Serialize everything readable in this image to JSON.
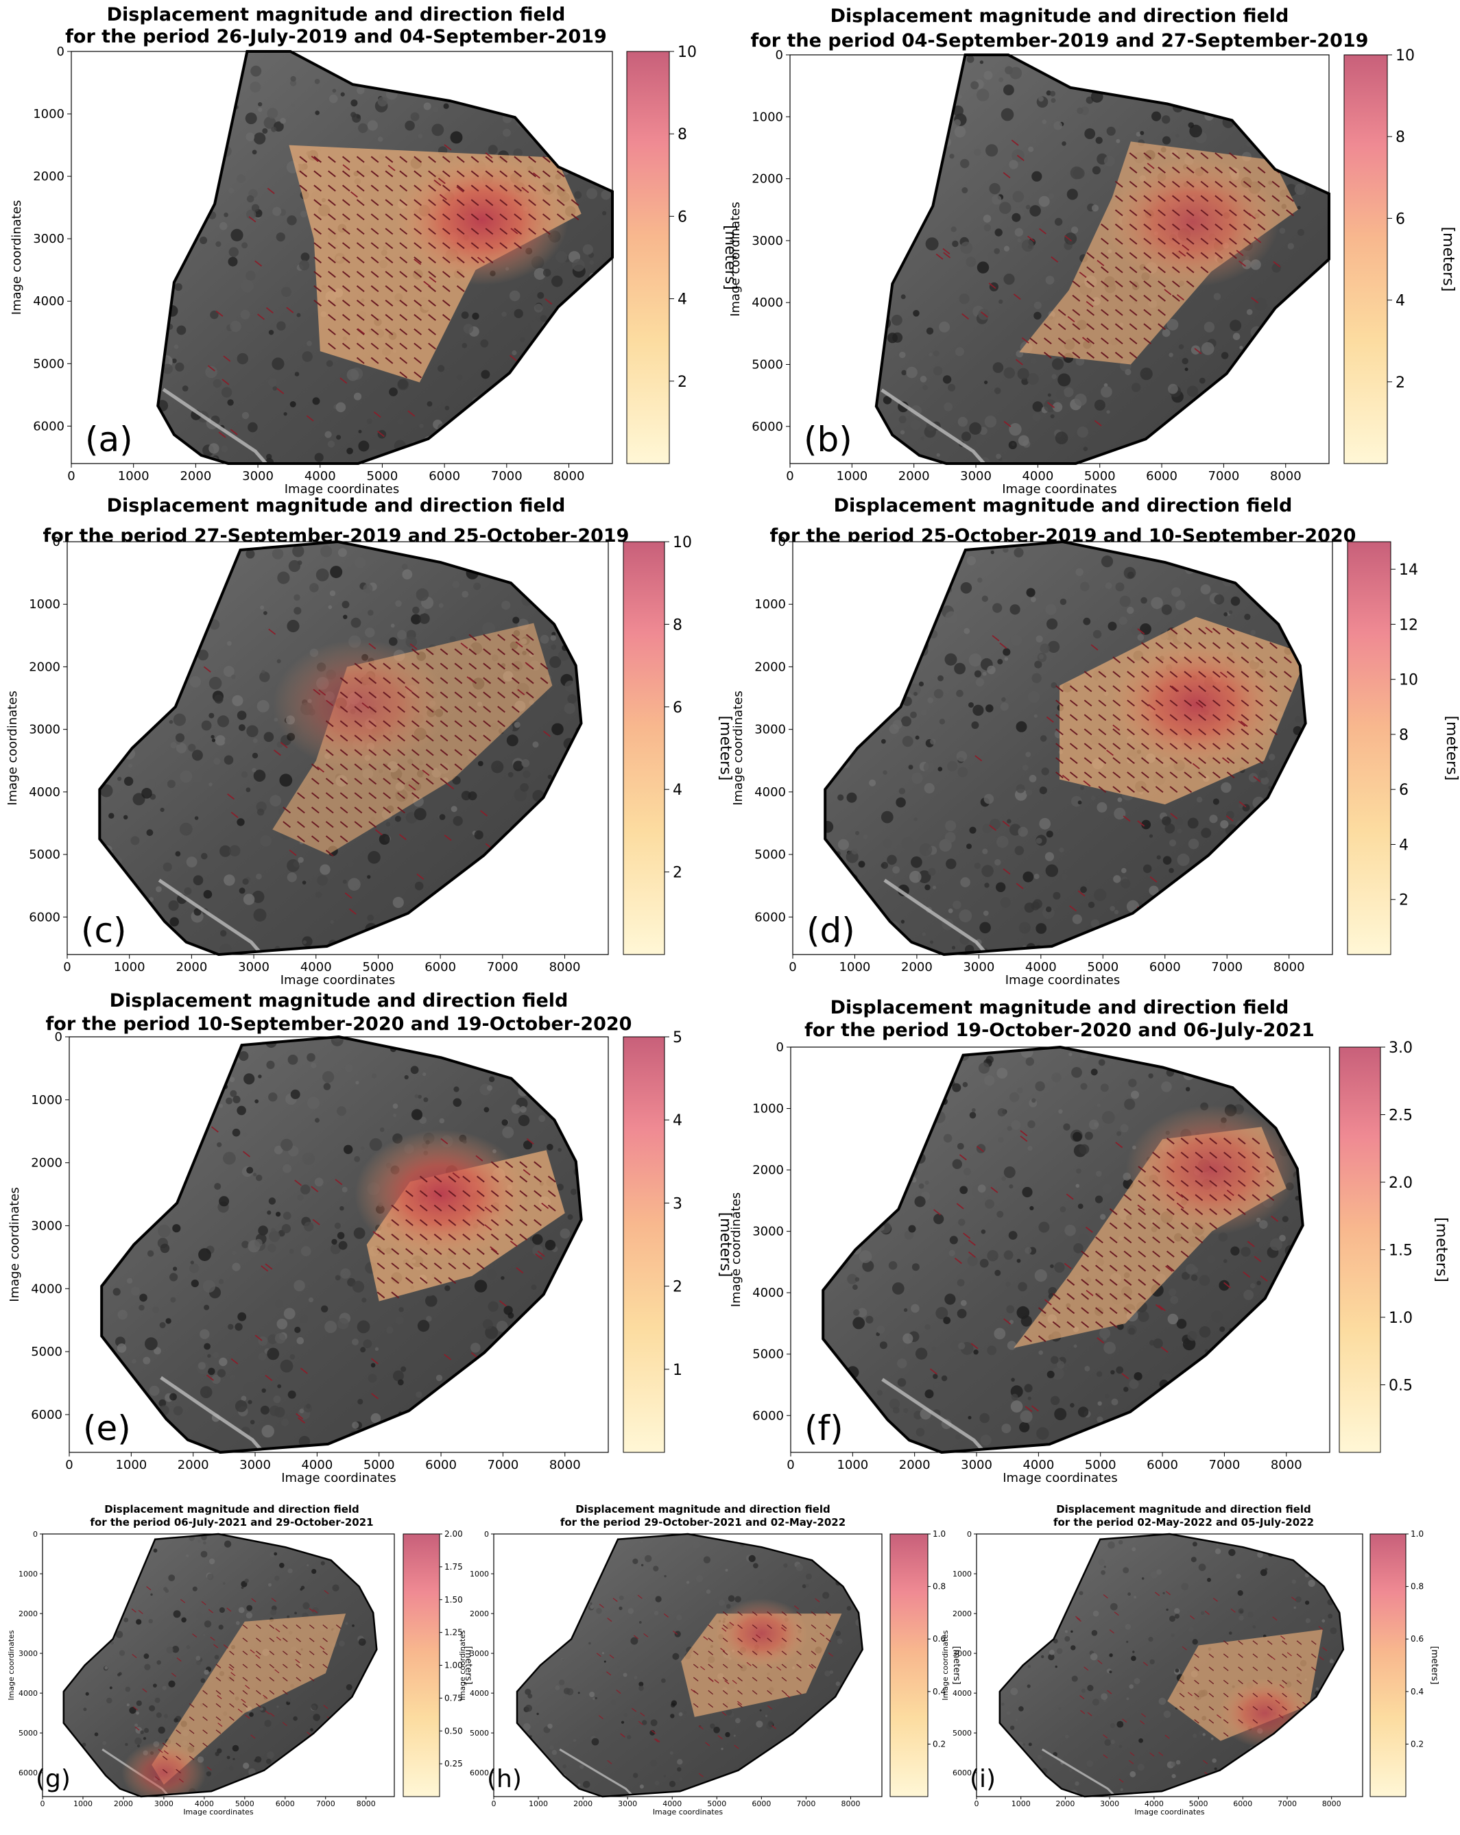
{
  "figure": {
    "panels": [
      {
        "id": "a",
        "title_line1": "Displacement magnitude and direction field",
        "title_line2": "for the period 26-July-2019 and 04-September-2019",
        "panel_label": "(a)",
        "cbar_max": 10,
        "cbar_ticks": [
          "2",
          "4",
          "6",
          "8",
          "10"
        ],
        "cbar_label": "[meters]",
        "xlabel": "Image coordinates",
        "ylabel": "Image coordinates"
      },
      {
        "id": "b",
        "title_line1": "Displacement magnitude and direction field",
        "title_line2": "for the period 04-September-2019 and 27-September-2019",
        "panel_label": "(b)",
        "cbar_max": 10,
        "cbar_ticks": [
          "2",
          "4",
          "6",
          "8",
          "10"
        ],
        "cbar_label": "[meters]",
        "xlabel": "Image coordinates",
        "ylabel": "Image coordinates"
      },
      {
        "id": "c",
        "title_line1": "Displacement magnitude and direction field",
        "title_line2": "for the period 27-September-2019 and 25-October-2019",
        "panel_label": "(c)",
        "cbar_max": 10,
        "cbar_ticks": [
          "2",
          "4",
          "6",
          "8",
          "10"
        ],
        "cbar_label": "[meters]",
        "xlabel": "Image coordinates",
        "ylabel": "Image coordinates"
      },
      {
        "id": "d",
        "title_line1": "Displacement magnitude and direction field",
        "title_line2": "for the period 25-October-2019 and 10-September-2020",
        "panel_label": "(d)",
        "cbar_max": 15,
        "cbar_ticks": [
          "2",
          "4",
          "6",
          "8",
          "10",
          "12",
          "14"
        ],
        "cbar_label": "[meters]",
        "xlabel": "Image coordinates",
        "ylabel": "Image coordinates"
      },
      {
        "id": "e",
        "title_line1": "Displacement magnitude and direction field",
        "title_line2": "for the period 10-September-2020 and 19-October-2020",
        "panel_label": "(e)",
        "cbar_max": 5,
        "cbar_ticks": [
          "1",
          "2",
          "3",
          "4",
          "5"
        ],
        "cbar_label": "[meters]",
        "xlabel": "Image coordinates",
        "ylabel": "Image coordinates"
      },
      {
        "id": "f",
        "title_line1": "Displacement magnitude and direction field",
        "title_line2": "for the period 19-October-2020 and 06-July-2021",
        "panel_label": "(f)",
        "cbar_max": 3.0,
        "cbar_ticks": [
          "0.5",
          "1.0",
          "1.5",
          "2.0",
          "2.5",
          "3.0"
        ],
        "cbar_label": "[meters]",
        "xlabel": "Image coordinates",
        "ylabel": "Image coordinates"
      },
      {
        "id": "g",
        "title_line1": "Displacement magnitude and direction field",
        "title_line2": "for the period 06-July-2021 and 29-October-2021",
        "panel_label": "(g)",
        "cbar_max": 2.0,
        "cbar_ticks": [
          "0.25",
          "0.50",
          "0.75",
          "1.00",
          "1.25",
          "1.50",
          "1.75",
          "2.00"
        ],
        "cbar_label": "[meters]",
        "xlabel": "Image coordinates",
        "ylabel": "Image coordinates"
      },
      {
        "id": "h",
        "title_line1": "Displacement magnitude and direction field",
        "title_line2": "for the period 29-October-2021 and 02-May-2022",
        "panel_label": "(h)",
        "cbar_max": 1.0,
        "cbar_ticks": [
          "0.2",
          "0.4",
          "0.6",
          "0.8",
          "1.0"
        ],
        "cbar_label": "[meters]",
        "xlabel": "Image coordinates",
        "ylabel": "Image coordinates"
      },
      {
        "id": "i",
        "title_line1": "Displacement magnitude and direction field",
        "title_line2": "for the period 02-May-2022 and 05-July-2022",
        "panel_label": "(i)",
        "cbar_max": 1.0,
        "cbar_ticks": [
          "0.2",
          "0.4",
          "0.6",
          "0.8",
          "1.0"
        ],
        "cbar_label": "[meters]",
        "xlabel": "Image coordinates",
        "ylabel": "Image coordinates"
      }
    ]
  },
  "chart_data": [
    {
      "type": "heatmap",
      "panel": "a",
      "title": "Displacement magnitude and direction field\nfor the period 26-July-2019 and 04-September-2019",
      "xlabel": "Image coordinates",
      "ylabel": "Image coordinates",
      "xlim": [
        0,
        8700
      ],
      "ylim": [
        6600,
        0
      ],
      "x_ticks": [
        0,
        1000,
        2000,
        3000,
        4000,
        5000,
        6000,
        7000,
        8000
      ],
      "y_ticks": [
        0,
        1000,
        2000,
        3000,
        4000,
        5000,
        6000
      ],
      "colorbar": {
        "label": "[meters]",
        "range": [
          0,
          10
        ],
        "ticks": [
          2,
          4,
          6,
          8,
          10
        ],
        "colormap": "light-yellow to pink-red"
      },
      "peak_displacement_m": 10,
      "peak_location": [
        6600,
        2700
      ],
      "displacement_zone": [
        [
          3500,
          1500
        ],
        [
          7800,
          1700
        ],
        [
          8200,
          2600
        ],
        [
          6500,
          3500
        ],
        [
          5600,
          5300
        ],
        [
          4000,
          4800
        ],
        [
          3900,
          3000
        ]
      ]
    },
    {
      "type": "heatmap",
      "panel": "b",
      "title": "Displacement magnitude and direction field\nfor the period 04-September-2019 and 27-September-2019",
      "xlabel": "Image coordinates",
      "ylabel": "Image coordinates",
      "xlim": [
        0,
        8700
      ],
      "ylim": [
        6600,
        0
      ],
      "x_ticks": [
        0,
        1000,
        2000,
        3000,
        4000,
        5000,
        6000,
        7000,
        8000
      ],
      "y_ticks": [
        0,
        1000,
        2000,
        3000,
        4000,
        5000,
        6000
      ],
      "colorbar": {
        "label": "[meters]",
        "range": [
          0,
          10
        ],
        "ticks": [
          2,
          4,
          6,
          8,
          10
        ],
        "colormap": "light-yellow to pink-red"
      },
      "peak_displacement_m": 8,
      "peak_location": [
        6500,
        2700
      ],
      "displacement_zone": [
        [
          5500,
          1400
        ],
        [
          7800,
          1700
        ],
        [
          8200,
          2500
        ],
        [
          6800,
          3500
        ],
        [
          5500,
          5000
        ],
        [
          3700,
          4800
        ],
        [
          4500,
          3800
        ],
        [
          5200,
          2300
        ]
      ]
    },
    {
      "type": "heatmap",
      "panel": "c",
      "title": "Displacement magnitude and direction field\nfor the period 27-September-2019 and 25-October-2019",
      "xlabel": "Image coordinates",
      "ylabel": "Image coordinates",
      "xlim": [
        0,
        8700
      ],
      "ylim": [
        6600,
        0
      ],
      "x_ticks": [
        0,
        1000,
        2000,
        3000,
        4000,
        5000,
        6000,
        7000,
        8000
      ],
      "y_ticks": [
        0,
        1000,
        2000,
        3000,
        4000,
        5000,
        6000
      ],
      "colorbar": {
        "label": "[meters]",
        "range": [
          0,
          10
        ],
        "ticks": [
          2,
          4,
          6,
          8,
          10
        ],
        "colormap": "light-yellow to pink-red"
      },
      "peak_displacement_m": 6,
      "peak_location": [
        4700,
        2600
      ],
      "displacement_zone": [
        [
          4500,
          2000
        ],
        [
          7500,
          1300
        ],
        [
          7800,
          2300
        ],
        [
          6200,
          3800
        ],
        [
          4200,
          5000
        ],
        [
          3300,
          4600
        ],
        [
          4000,
          3500
        ]
      ]
    },
    {
      "type": "heatmap",
      "panel": "d",
      "title": "Displacement magnitude and direction field\nfor the period 25-October-2019 and 10-September-2020",
      "xlabel": "Image coordinates",
      "ylabel": "Image coordinates",
      "xlim": [
        0,
        8700
      ],
      "ylim": [
        6600,
        0
      ],
      "x_ticks": [
        0,
        1000,
        2000,
        3000,
        4000,
        5000,
        6000,
        7000,
        8000
      ],
      "y_ticks": [
        0,
        1000,
        2000,
        3000,
        4000,
        5000,
        6000
      ],
      "colorbar": {
        "label": "[meters]",
        "range": [
          0,
          15
        ],
        "ticks": [
          2,
          4,
          6,
          8,
          10,
          12,
          14
        ],
        "colormap": "light-yellow to pink-red"
      },
      "peak_displacement_m": 14,
      "peak_location": [
        6500,
        2600
      ],
      "displacement_zone": [
        [
          4300,
          2300
        ],
        [
          6500,
          1200
        ],
        [
          8300,
          1800
        ],
        [
          7600,
          3500
        ],
        [
          6000,
          4200
        ],
        [
          4300,
          3800
        ]
      ]
    },
    {
      "type": "heatmap",
      "panel": "e",
      "title": "Displacement magnitude and direction field\nfor the period 10-September-2020 and 19-October-2020",
      "xlabel": "Image coordinates",
      "ylabel": "Image coordinates",
      "xlim": [
        0,
        8700
      ],
      "ylim": [
        6600,
        0
      ],
      "x_ticks": [
        0,
        1000,
        2000,
        3000,
        4000,
        5000,
        6000,
        7000,
        8000
      ],
      "y_ticks": [
        0,
        1000,
        2000,
        3000,
        4000,
        5000,
        6000
      ],
      "colorbar": {
        "label": "[meters]",
        "range": [
          0,
          5
        ],
        "ticks": [
          1,
          2,
          3,
          4,
          5
        ],
        "colormap": "light-yellow to pink-red"
      },
      "peak_displacement_m": 5,
      "peak_location": [
        6000,
        2500
      ],
      "displacement_zone": [
        [
          5500,
          2300
        ],
        [
          7700,
          1800
        ],
        [
          8000,
          2800
        ],
        [
          6500,
          3800
        ],
        [
          5000,
          4200
        ],
        [
          4800,
          3300
        ]
      ]
    },
    {
      "type": "heatmap",
      "panel": "f",
      "title": "Displacement magnitude and direction field\nfor the period 19-October-2020 and 06-July-2021",
      "xlabel": "Image coordinates",
      "ylabel": "Image coordinates",
      "xlim": [
        0,
        8700
      ],
      "ylim": [
        6600,
        0
      ],
      "x_ticks": [
        0,
        1000,
        2000,
        3000,
        4000,
        5000,
        6000,
        7000,
        8000
      ],
      "y_ticks": [
        0,
        1000,
        2000,
        3000,
        4000,
        5000,
        6000
      ],
      "colorbar": {
        "label": "[meters]",
        "range": [
          0,
          3.0
        ],
        "ticks": [
          0.5,
          1.0,
          1.5,
          2.0,
          2.5,
          3.0
        ],
        "colormap": "light-yellow to pink-red"
      },
      "peak_displacement_m": 2.5,
      "peak_location": [
        6800,
        2000
      ],
      "displacement_zone": [
        [
          6000,
          1500
        ],
        [
          7600,
          1300
        ],
        [
          8000,
          2300
        ],
        [
          6800,
          3000
        ],
        [
          5400,
          4500
        ],
        [
          3600,
          4900
        ],
        [
          4500,
          3700
        ]
      ]
    },
    {
      "type": "heatmap",
      "panel": "g",
      "title": "Displacement magnitude and direction field\nfor the period 06-July-2021 and 29-October-2021",
      "xlabel": "Image coordinates",
      "ylabel": "Image coordinates",
      "xlim": [
        0,
        8700
      ],
      "ylim": [
        6600,
        0
      ],
      "x_ticks": [
        0,
        1000,
        2000,
        3000,
        4000,
        5000,
        6000,
        7000,
        8000
      ],
      "y_ticks": [
        0,
        1000,
        2000,
        3000,
        4000,
        5000,
        6000
      ],
      "colorbar": {
        "label": "[meters]",
        "range": [
          0,
          2.0
        ],
        "ticks": [
          0.25,
          0.5,
          0.75,
          1.0,
          1.25,
          1.5,
          1.75,
          2.0
        ],
        "colormap": "light-yellow to pink-red"
      },
      "peak_displacement_m": 1.5,
      "peak_location": [
        3000,
        6000
      ],
      "displacement_zone": [
        [
          5000,
          2200
        ],
        [
          7500,
          2000
        ],
        [
          7000,
          3500
        ],
        [
          5000,
          4500
        ],
        [
          3000,
          6300
        ],
        [
          2700,
          5800
        ]
      ]
    },
    {
      "type": "heatmap",
      "panel": "h",
      "title": "Displacement magnitude and direction field\nfor the period 29-October-2021 and 02-May-2022",
      "xlabel": "Image coordinates",
      "ylabel": "Image coordinates",
      "xlim": [
        0,
        8700
      ],
      "ylim": [
        6600,
        0
      ],
      "x_ticks": [
        0,
        1000,
        2000,
        3000,
        4000,
        5000,
        6000,
        7000,
        8000
      ],
      "y_ticks": [
        0,
        1000,
        2000,
        3000,
        4000,
        5000,
        6000
      ],
      "colorbar": {
        "label": "[meters]",
        "range": [
          0,
          1.0
        ],
        "ticks": [
          0.2,
          0.4,
          0.6,
          0.8,
          1.0
        ],
        "colormap": "light-yellow to pink-red"
      },
      "peak_displacement_m": 0.8,
      "peak_location": [
        6000,
        2500
      ],
      "displacement_zone": [
        [
          5000,
          2000
        ],
        [
          7800,
          2000
        ],
        [
          7000,
          4000
        ],
        [
          4500,
          4600
        ],
        [
          4200,
          3200
        ]
      ]
    },
    {
      "type": "heatmap",
      "panel": "i",
      "title": "Displacement magnitude and direction field\nfor the period 02-May-2022 and 05-July-2022",
      "xlabel": "Image coordinates",
      "ylabel": "Image coordinates",
      "xlim": [
        0,
        8700
      ],
      "ylim": [
        6600,
        0
      ],
      "x_ticks": [
        0,
        1000,
        2000,
        3000,
        4000,
        5000,
        6000,
        7000,
        8000
      ],
      "y_ticks": [
        0,
        1000,
        2000,
        3000,
        4000,
        5000,
        6000
      ],
      "colorbar": {
        "label": "[meters]",
        "range": [
          0,
          1.0
        ],
        "ticks": [
          0.2,
          0.4,
          0.6,
          0.8,
          1.0
        ],
        "colormap": "light-yellow to pink-red"
      },
      "peak_displacement_m": 0.8,
      "peak_location": [
        6500,
        4500
      ],
      "displacement_zone": [
        [
          5000,
          2800
        ],
        [
          7800,
          2400
        ],
        [
          7500,
          4300
        ],
        [
          5500,
          5200
        ],
        [
          4300,
          4200
        ]
      ]
    }
  ]
}
